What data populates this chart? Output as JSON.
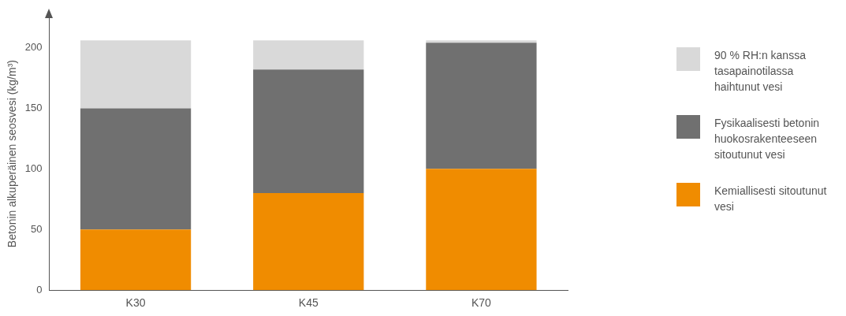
{
  "chart_data": {
    "type": "bar",
    "stacked": true,
    "ylabel": "Betonin alkuperäinen seosvesi (kg/m³)",
    "categories": [
      "K30",
      "K45",
      "K70"
    ],
    "ylim": [
      0,
      225
    ],
    "yticks": [
      0,
      50,
      100,
      150,
      200
    ],
    "grid": false,
    "legend": "right",
    "series": [
      {
        "name": "Kemiallisesti sitoutunut vesi",
        "color": "#f08c00",
        "values": [
          50,
          80,
          100
        ]
      },
      {
        "name": "Fysikaalisesti betonin huokosrakenteeseen sitoutunut vesi",
        "color": "#707070",
        "values": [
          100,
          102,
          104
        ]
      },
      {
        "name": "90 % RH:n kanssa tasapainotilassa haihtunut vesi",
        "color": "#d9d9d9",
        "values": [
          56,
          24,
          2
        ]
      }
    ]
  }
}
